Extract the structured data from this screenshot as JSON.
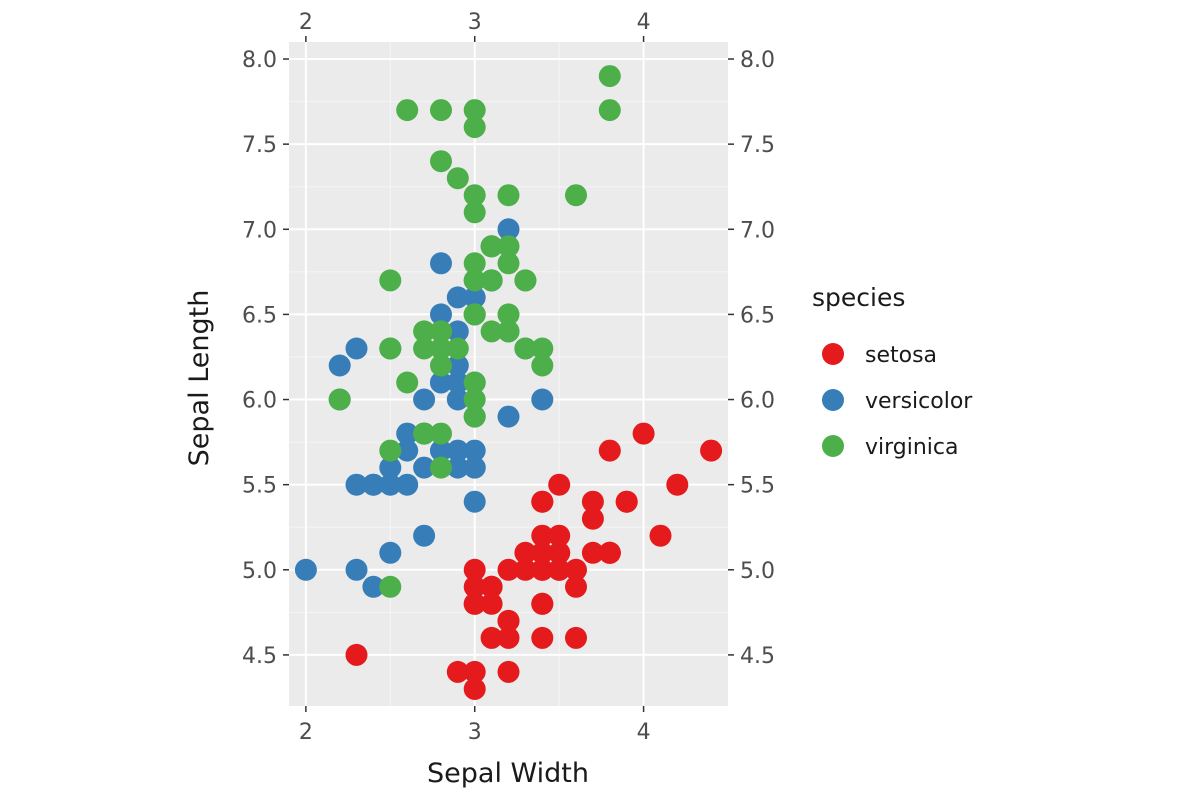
{
  "chart_data": {
    "type": "scatter",
    "title": "",
    "xlabel": "Sepal Width",
    "ylabel": "Sepal Length",
    "xlim": [
      1.9,
      4.5
    ],
    "ylim": [
      4.2,
      8.1
    ],
    "x_ticks": [
      2,
      3,
      4
    ],
    "x_tick_labels": [
      "2",
      "3",
      "4"
    ],
    "y_ticks": [
      4.5,
      5.0,
      5.5,
      6.0,
      6.5,
      7.0,
      7.5,
      8.0
    ],
    "y_tick_labels": [
      "4.5",
      "5.0",
      "5.5",
      "6.0",
      "6.5",
      "7.0",
      "7.5",
      "8.0"
    ],
    "grid": true,
    "legend": {
      "title": "species",
      "position": "right"
    },
    "series": [
      {
        "name": "setosa",
        "color": "#e41a1c",
        "points": [
          [
            3.5,
            5.1
          ],
          [
            3.0,
            4.9
          ],
          [
            3.2,
            4.7
          ],
          [
            3.1,
            4.6
          ],
          [
            3.6,
            5.0
          ],
          [
            3.9,
            5.4
          ],
          [
            3.4,
            4.6
          ],
          [
            3.4,
            5.0
          ],
          [
            2.9,
            4.4
          ],
          [
            3.1,
            4.9
          ],
          [
            3.7,
            5.4
          ],
          [
            3.4,
            4.8
          ],
          [
            3.0,
            4.8
          ],
          [
            3.0,
            4.3
          ],
          [
            4.0,
            5.8
          ],
          [
            4.4,
            5.7
          ],
          [
            3.9,
            5.4
          ],
          [
            3.5,
            5.1
          ],
          [
            3.8,
            5.7
          ],
          [
            3.8,
            5.1
          ],
          [
            3.4,
            5.4
          ],
          [
            3.7,
            5.1
          ],
          [
            3.6,
            4.6
          ],
          [
            3.3,
            5.1
          ],
          [
            3.4,
            4.8
          ],
          [
            3.0,
            5.0
          ],
          [
            3.4,
            5.0
          ],
          [
            3.5,
            5.2
          ],
          [
            3.4,
            5.2
          ],
          [
            3.2,
            4.7
          ],
          [
            3.1,
            4.8
          ],
          [
            3.4,
            5.4
          ],
          [
            4.1,
            5.2
          ],
          [
            4.2,
            5.5
          ],
          [
            3.1,
            4.9
          ],
          [
            3.2,
            5.0
          ],
          [
            3.5,
            5.5
          ],
          [
            3.6,
            4.9
          ],
          [
            3.0,
            4.4
          ],
          [
            3.4,
            5.1
          ],
          [
            3.5,
            5.0
          ],
          [
            2.3,
            4.5
          ],
          [
            3.2,
            4.4
          ],
          [
            3.5,
            5.0
          ],
          [
            3.8,
            5.1
          ],
          [
            3.0,
            4.8
          ],
          [
            3.8,
            5.1
          ],
          [
            3.2,
            4.6
          ],
          [
            3.7,
            5.3
          ],
          [
            3.3,
            5.0
          ]
        ]
      },
      {
        "name": "versicolor",
        "color": "#377eb8",
        "points": [
          [
            3.2,
            7.0
          ],
          [
            3.2,
            6.4
          ],
          [
            3.1,
            6.9
          ],
          [
            2.3,
            5.5
          ],
          [
            2.8,
            6.5
          ],
          [
            2.8,
            5.7
          ],
          [
            3.3,
            6.3
          ],
          [
            2.4,
            4.9
          ],
          [
            2.9,
            6.6
          ],
          [
            2.7,
            5.2
          ],
          [
            2.0,
            5.0
          ],
          [
            3.0,
            5.9
          ],
          [
            2.2,
            6.0
          ],
          [
            2.9,
            6.1
          ],
          [
            2.9,
            5.6
          ],
          [
            3.1,
            6.7
          ],
          [
            3.0,
            5.6
          ],
          [
            2.7,
            5.8
          ],
          [
            2.2,
            6.2
          ],
          [
            2.5,
            5.6
          ],
          [
            3.2,
            5.9
          ],
          [
            2.8,
            6.1
          ],
          [
            2.5,
            6.3
          ],
          [
            2.8,
            6.1
          ],
          [
            2.9,
            6.4
          ],
          [
            3.0,
            6.6
          ],
          [
            2.8,
            6.8
          ],
          [
            3.0,
            6.7
          ],
          [
            2.9,
            6.0
          ],
          [
            2.6,
            5.7
          ],
          [
            2.4,
            5.5
          ],
          [
            2.4,
            5.5
          ],
          [
            2.7,
            5.8
          ],
          [
            2.7,
            6.0
          ],
          [
            3.0,
            5.4
          ],
          [
            3.4,
            6.0
          ],
          [
            3.1,
            6.7
          ],
          [
            2.3,
            6.3
          ],
          [
            3.0,
            5.6
          ],
          [
            2.5,
            5.5
          ],
          [
            2.6,
            5.5
          ],
          [
            3.0,
            6.1
          ],
          [
            2.6,
            5.8
          ],
          [
            2.3,
            5.0
          ],
          [
            2.7,
            5.6
          ],
          [
            3.0,
            5.7
          ],
          [
            2.9,
            5.7
          ],
          [
            2.9,
            6.2
          ],
          [
            2.5,
            5.1
          ],
          [
            2.8,
            5.7
          ]
        ]
      },
      {
        "name": "virginica",
        "color": "#4daf4a",
        "points": [
          [
            3.3,
            6.3
          ],
          [
            2.7,
            5.8
          ],
          [
            3.0,
            7.1
          ],
          [
            2.9,
            6.3
          ],
          [
            3.0,
            6.5
          ],
          [
            3.0,
            7.6
          ],
          [
            2.5,
            4.9
          ],
          [
            2.9,
            7.3
          ],
          [
            2.5,
            6.7
          ],
          [
            3.6,
            7.2
          ],
          [
            3.2,
            6.5
          ],
          [
            2.7,
            6.4
          ],
          [
            3.0,
            6.8
          ],
          [
            2.5,
            5.7
          ],
          [
            2.8,
            5.8
          ],
          [
            3.2,
            6.4
          ],
          [
            3.0,
            6.5
          ],
          [
            3.8,
            7.7
          ],
          [
            2.6,
            7.7
          ],
          [
            2.2,
            6.0
          ],
          [
            3.2,
            6.9
          ],
          [
            2.8,
            5.6
          ],
          [
            2.8,
            7.7
          ],
          [
            2.7,
            6.3
          ],
          [
            3.3,
            6.7
          ],
          [
            3.2,
            7.2
          ],
          [
            2.8,
            6.2
          ],
          [
            3.0,
            6.1
          ],
          [
            2.8,
            6.4
          ],
          [
            3.0,
            7.2
          ],
          [
            2.8,
            7.4
          ],
          [
            3.8,
            7.9
          ],
          [
            2.8,
            6.4
          ],
          [
            2.8,
            6.3
          ],
          [
            2.6,
            6.1
          ],
          [
            3.0,
            7.7
          ],
          [
            3.4,
            6.3
          ],
          [
            3.1,
            6.4
          ],
          [
            3.0,
            6.0
          ],
          [
            3.1,
            6.9
          ],
          [
            3.1,
            6.7
          ],
          [
            3.1,
            6.9
          ],
          [
            2.7,
            5.8
          ],
          [
            3.2,
            6.8
          ],
          [
            3.3,
            6.7
          ],
          [
            3.0,
            6.7
          ],
          [
            2.5,
            6.3
          ],
          [
            3.0,
            6.5
          ],
          [
            3.4,
            6.2
          ],
          [
            3.0,
            5.9
          ]
        ]
      }
    ]
  }
}
